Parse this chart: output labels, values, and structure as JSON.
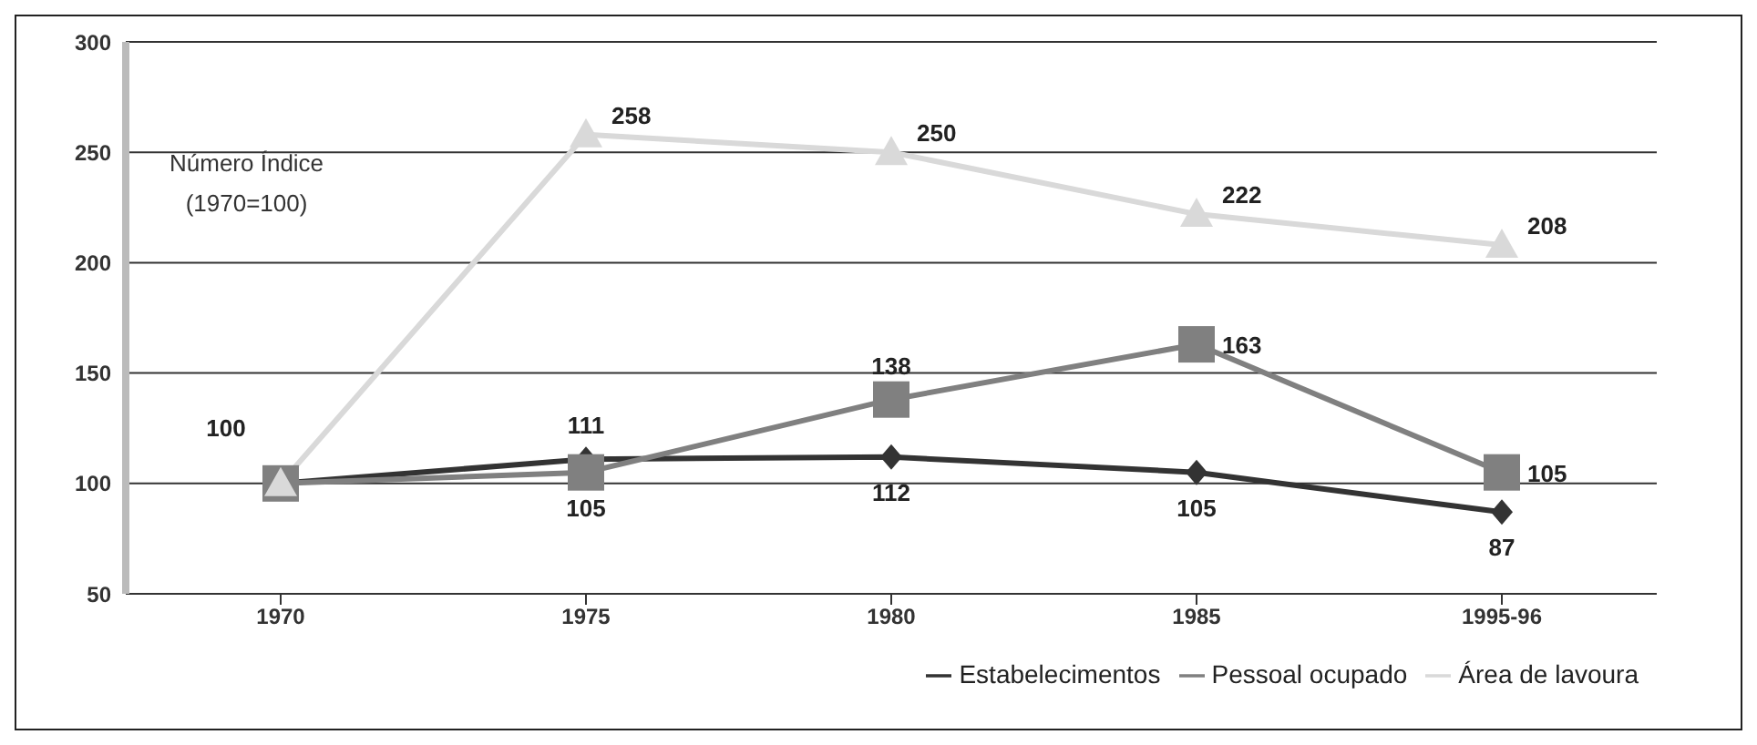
{
  "chart_data": {
    "type": "line",
    "categories": [
      "1970",
      "1975",
      "1980",
      "1985",
      "1995-96"
    ],
    "series": [
      {
        "name": "Estabelecimentos",
        "color": "#333333",
        "marker": "diamond",
        "values": [
          100,
          111,
          112,
          105,
          87
        ],
        "value_labels": [
          "100",
          "111",
          "112",
          "105",
          "87"
        ]
      },
      {
        "name": "Pessoal ocupado",
        "color": "#808080",
        "marker": "square",
        "values": [
          100,
          105,
          138,
          163,
          105
        ],
        "value_labels": [
          null,
          "105",
          "138",
          "163",
          "105"
        ]
      },
      {
        "name": "Área de lavoura",
        "color": "#d9d9d9",
        "marker": "triangle",
        "values": [
          100,
          258,
          250,
          222,
          208
        ],
        "value_labels": [
          null,
          "258",
          "250",
          "222",
          "208"
        ]
      }
    ],
    "annotations": [
      "Número Índice",
      "(1970=100)"
    ],
    "ylim": [
      50,
      300
    ],
    "yticks": [
      50,
      100,
      150,
      200,
      250,
      300
    ],
    "grid": "y",
    "legend": "bottom",
    "line_style": "solid"
  }
}
